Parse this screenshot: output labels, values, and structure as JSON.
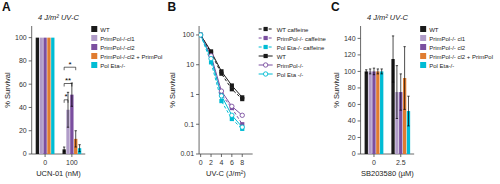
{
  "chart_data": [
    {
      "type": "bar",
      "label": "A",
      "title": "4 J/m² UV-C",
      "xlabel": "UCN-01 (nM)",
      "ylabel": "% Survival",
      "categories": [
        "0",
        "100"
      ],
      "series": [
        {
          "name": "WT",
          "color": "#1a1a1a",
          "values": [
            100,
            4
          ],
          "errors": [
            null,
            2
          ]
        },
        {
          "name": "PrimPol-/-cl1",
          "color": "#b09cc8",
          "values": [
            100,
            38
          ],
          "errors": [
            null,
            15
          ]
        },
        {
          "name": "PrimPol-/-cl2",
          "color": "#7b4fa0",
          "values": [
            100,
            51
          ],
          "errors": [
            null,
            10
          ]
        },
        {
          "name": "PrimPol-/-cl2 + PrimPol",
          "color": "#e07c30",
          "values": [
            100,
            13
          ],
          "errors": [
            null,
            7
          ]
        },
        {
          "name": "Pol Eta-/-",
          "color": "#00bcd4",
          "values": [
            100,
            5
          ],
          "errors": [
            null,
            3
          ]
        }
      ],
      "ylim": [
        0,
        110
      ],
      "yticks": [
        0,
        20,
        40,
        60,
        80,
        100
      ],
      "grid": false,
      "legend": "right",
      "annotations": [
        {
          "text": "*",
          "category": "100",
          "from": "WT",
          "to": "PrimPol-/-cl1",
          "y": 44
        },
        {
          "text": "**",
          "category": "100",
          "from": "WT",
          "to": "PrimPol-/-cl2",
          "y": 58
        },
        {
          "text": "*",
          "category": "100",
          "from": "WT",
          "to": "PrimPol-/-cl2 + PrimPol",
          "y": 72
        }
      ]
    },
    {
      "type": "line",
      "label": "B",
      "xlabel": "UV-C (J/m²)",
      "ylabel": "% Survival",
      "x": [
        0,
        2,
        4,
        6,
        8
      ],
      "xlim": [
        -0.3,
        10
      ],
      "xticks": [
        0,
        2,
        4,
        6,
        8
      ],
      "ylim": [
        0.01,
        200
      ],
      "yticks": [
        0.01,
        0.1,
        1,
        10,
        100
      ],
      "log": "y",
      "grid": false,
      "legend": "right",
      "series": [
        {
          "name": "WT caffeine",
          "color": "#1a1a1a",
          "line_style": "dashed",
          "marker": "square",
          "values": [
            100,
            25,
            5,
            1.5,
            0.7
          ]
        },
        {
          "name": "PrimPol-/- caffeine",
          "color": "#7b4fa0",
          "line_style": "dashed",
          "marker": "square",
          "values": [
            100,
            18,
            1.0,
            0.35,
            0.1
          ]
        },
        {
          "name": "Pol Eta-/- caffeine",
          "color": "#00bcd4",
          "line_style": "dashed",
          "marker": "square",
          "values": [
            100,
            12,
            0.6,
            0.15,
            0.07
          ]
        },
        {
          "name": "WT",
          "color": "#1a1a1a",
          "line_style": "solid",
          "marker": "square",
          "values": [
            100,
            28,
            6,
            2.0,
            0.8
          ]
        },
        {
          "name": "PrimPol-/-",
          "color": "#7b4fa0",
          "line_style": "solid",
          "marker": "open-circle",
          "values": [
            100,
            20,
            1.3,
            0.4,
            0.2
          ]
        },
        {
          "name": "Pol Eta -/-",
          "color": "#00bcd4",
          "line_style": "solid",
          "marker": "open-circle",
          "values": [
            100,
            16,
            0.9,
            0.2,
            0.08
          ]
        }
      ]
    },
    {
      "type": "bar",
      "label": "C",
      "title": "4 J/m² UV-C",
      "xlabel": "SB203580 (µM)",
      "ylabel": "% Survival",
      "categories": [
        "0",
        "2.5"
      ],
      "series": [
        {
          "name": "WT",
          "color": "#1a1a1a",
          "values": [
            100,
            115
          ],
          "errors": [
            2,
            28
          ]
        },
        {
          "name": "PrimPol-/- cl1",
          "color": "#b09cc8",
          "values": [
            100,
            75
          ],
          "errors": [
            3,
            32
          ]
        },
        {
          "name": "PrimPol-/- cl2",
          "color": "#7b4fa0",
          "values": [
            100,
            75
          ],
          "errors": [
            4,
            22
          ]
        },
        {
          "name": "PrimPol-/- cl2 + PrimPol",
          "color": "#e07c30",
          "values": [
            100,
            92
          ],
          "errors": [
            3,
            38
          ]
        },
        {
          "name": "Pol Eta-/-",
          "color": "#00bcd4",
          "values": [
            100,
            52
          ],
          "errors": [
            3,
            18
          ]
        }
      ],
      "ylim": [
        0,
        155
      ],
      "yticks": [
        0,
        20,
        40,
        60,
        80,
        100,
        120,
        140
      ],
      "grid": false,
      "legend": "right"
    }
  ]
}
